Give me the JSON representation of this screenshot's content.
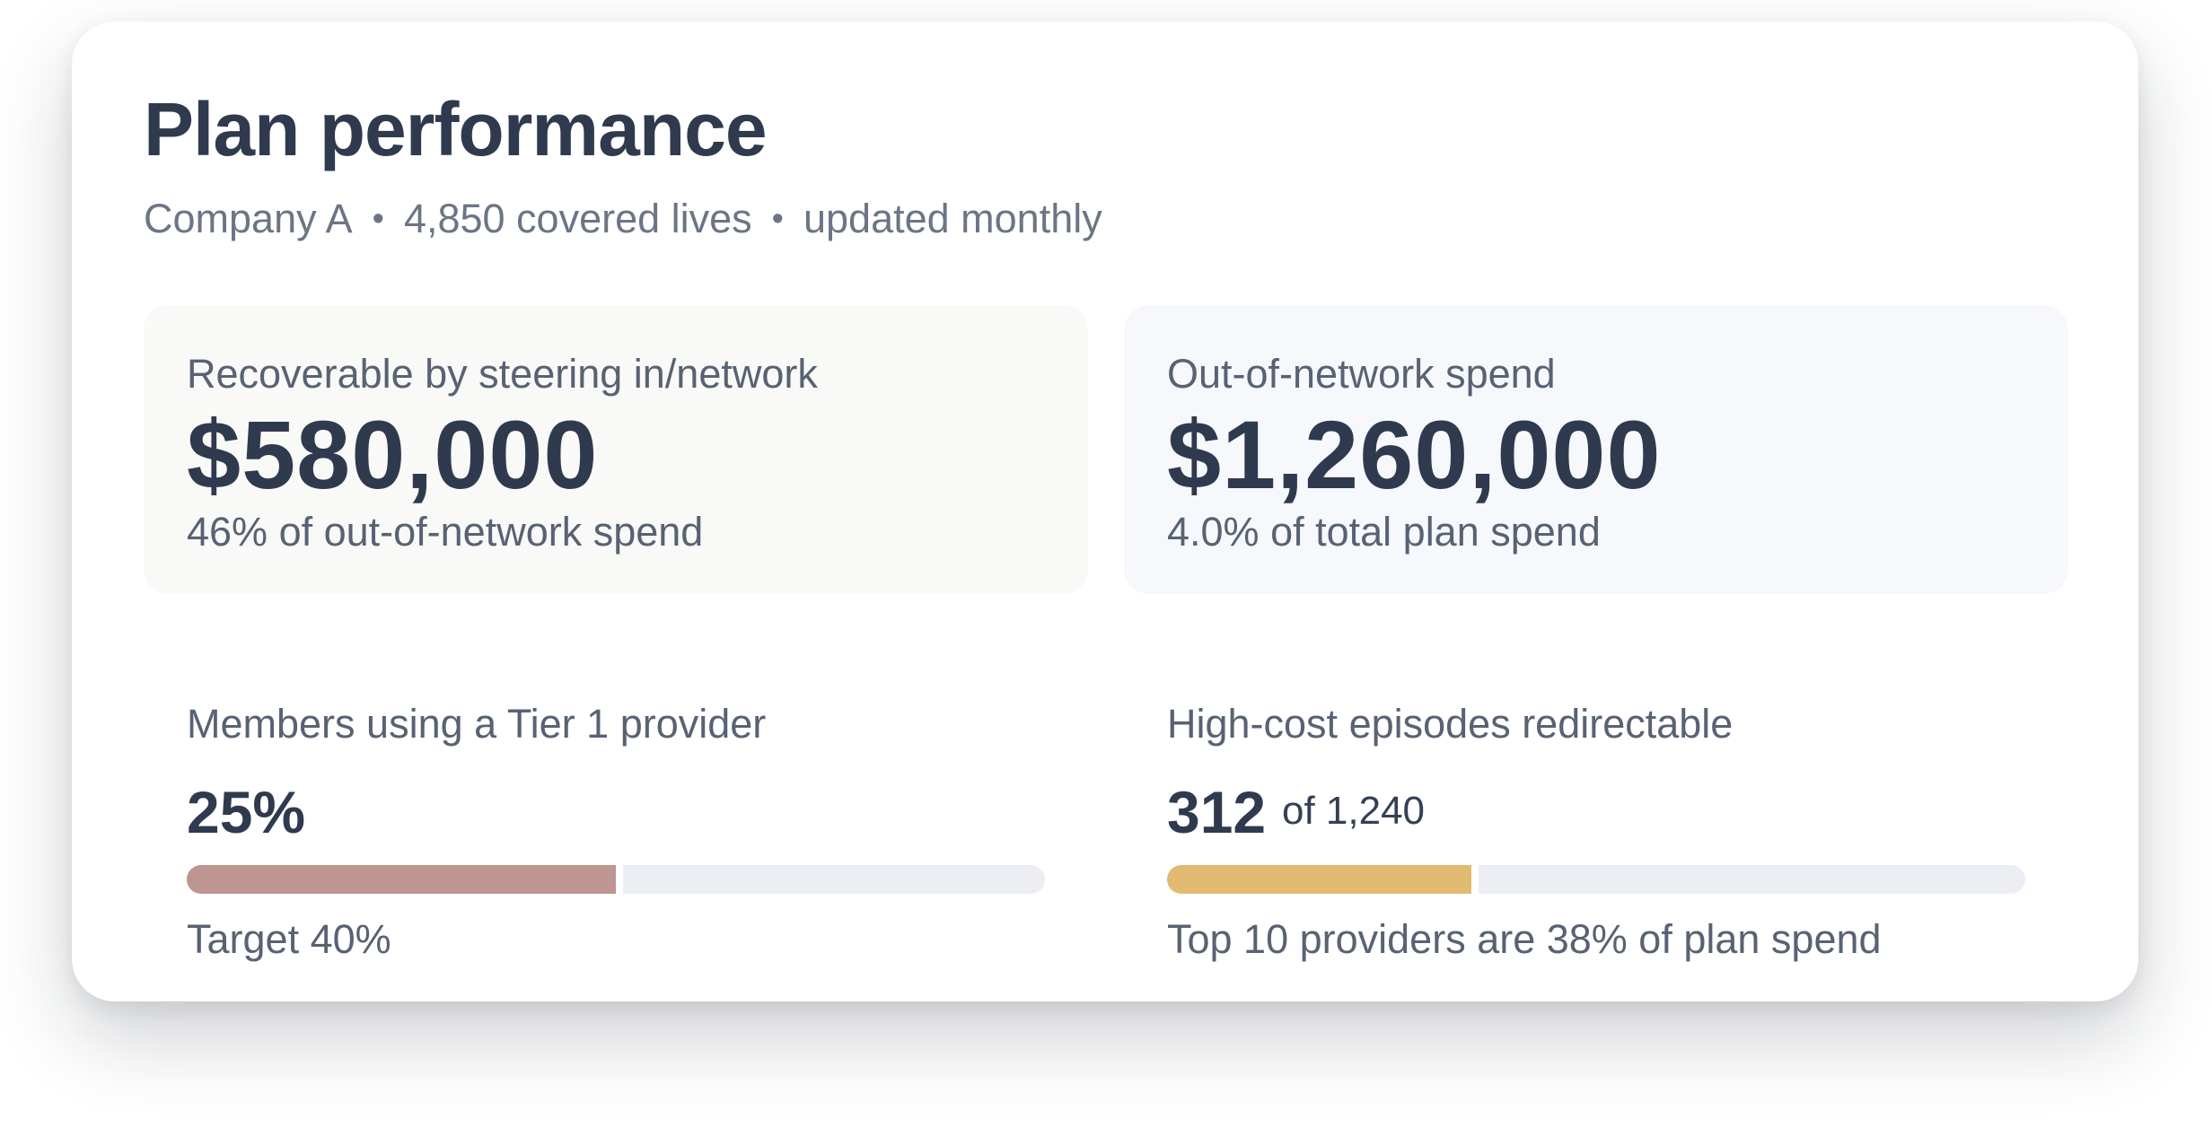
{
  "header": {
    "title": "Plan performance",
    "company": "Company A",
    "covered_lives": "4,850 covered lives",
    "update_frequency": "updated monthly",
    "separator": "•"
  },
  "kpis": [
    {
      "label": "Recoverable by steering in/network",
      "value": "$580,000",
      "note": "46% of out-of-network spend"
    },
    {
      "label": "Out-of-network spend",
      "value": "$1,260,000",
      "note": "4.0% of total plan spend"
    }
  ],
  "metrics": [
    {
      "label": "Members using a Tier 1 provider",
      "value": "25%",
      "progress_fraction": 0.5,
      "color": "#bf9591",
      "note": "Target 40%"
    },
    {
      "label": "High-cost episodes redirectable",
      "value": "312",
      "of_total": "of 1,240",
      "progress_fraction": 0.355,
      "color": "#e2bb72",
      "note": "Top 10 providers are 38% of plan spend"
    }
  ],
  "colors": {
    "text_primary": "#2f3a4e",
    "text_secondary": "#586273",
    "track": "#eceef4"
  }
}
